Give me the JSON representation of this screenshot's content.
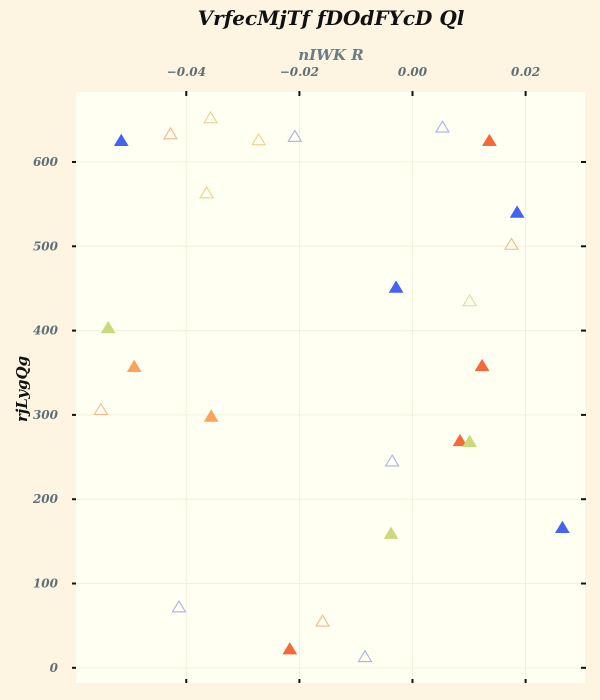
{
  "chart_data": {
    "type": "scatter",
    "title": "VrfecMjTf fDOdFYcD Ql",
    "xlabel": "nIWK  R",
    "ylabel": "rjLygQg",
    "xlim": [
      -0.0595,
      0.0305
    ],
    "ylim": [
      -18,
      683
    ],
    "x_ticks": [
      {
        "value": -0.04,
        "label": "−0.04"
      },
      {
        "value": -0.02,
        "label": "−0.02"
      },
      {
        "value": 0.0,
        "label": "0.00"
      },
      {
        "value": 0.02,
        "label": "0.02"
      }
    ],
    "y_ticks": [
      {
        "value": 0,
        "label": "0"
      },
      {
        "value": 100,
        "label": "100"
      },
      {
        "value": 200,
        "label": "200"
      },
      {
        "value": 300,
        "label": "300"
      },
      {
        "value": 400,
        "label": "400"
      },
      {
        "value": 500,
        "label": "500"
      },
      {
        "value": 600,
        "label": "600"
      }
    ],
    "x_axis_position": "top",
    "grid": true,
    "marker": "triangle",
    "colors": {
      "background": "#fdf5e2",
      "plot_area": "#fffff2",
      "grid": "#f0f0dc",
      "blue": "#4463f0",
      "red_orange": "#f76838",
      "orange": "#fba35c",
      "light_orange_outline": "#f8b48a",
      "yellow_outline": "#f0d08a",
      "light_blue_outline": "#aab0ec",
      "yellow_green": "#c9da7d",
      "pale_green_outline": "#d2e2a6"
    },
    "points": [
      {
        "x": -0.0515,
        "y": 625,
        "color": "#4463f0",
        "filled": true
      },
      {
        "x": 0.0136,
        "y": 625,
        "color": "#f76838",
        "filled": true
      },
      {
        "x": 0.0185,
        "y": 540,
        "color": "#4463f0",
        "filled": true
      },
      {
        "x": -0.0029,
        "y": 451,
        "color": "#4463f0",
        "filled": true
      },
      {
        "x": 0.0265,
        "y": 166,
        "color": "#4463f0",
        "filled": true
      },
      {
        "x": 0.0123,
        "y": 358,
        "color": "#f76838",
        "filled": true
      },
      {
        "x": 0.0084,
        "y": 269,
        "color": "#f76838",
        "filled": true
      },
      {
        "x": -0.0217,
        "y": 22,
        "color": "#f76838",
        "filled": true
      },
      {
        "x": -0.0492,
        "y": 357,
        "color": "#fba35c",
        "filled": true
      },
      {
        "x": -0.0356,
        "y": 298,
        "color": "#fba35c",
        "filled": true
      },
      {
        "x": -0.0538,
        "y": 403,
        "color": "#c9da7d",
        "filled": true
      },
      {
        "x": 0.0101,
        "y": 268,
        "color": "#c9da7d",
        "filled": true
      },
      {
        "x": -0.0038,
        "y": 159,
        "color": "#c9da7d",
        "filled": true
      },
      {
        "x": -0.0428,
        "y": 633,
        "color": "#f8b48a",
        "filled": false
      },
      {
        "x": -0.0551,
        "y": 306,
        "color": "#f8b48a",
        "filled": false
      },
      {
        "x": -0.0159,
        "y": 55,
        "color": "#f8b48a",
        "filled": false
      },
      {
        "x": 0.0175,
        "y": 502,
        "color": "#f8b48a",
        "filled": false
      },
      {
        "x": -0.0357,
        "y": 652,
        "color": "#f0d08a",
        "filled": false
      },
      {
        "x": -0.0364,
        "y": 563,
        "color": "#f0d08a",
        "filled": false
      },
      {
        "x": -0.0272,
        "y": 626,
        "color": "#f0d08a",
        "filled": false
      },
      {
        "x": -0.0208,
        "y": 630,
        "color": "#aab0ec",
        "filled": false
      },
      {
        "x": 0.0053,
        "y": 641,
        "color": "#aab0ec",
        "filled": false
      },
      {
        "x": -0.0036,
        "y": 245,
        "color": "#aab0ec",
        "filled": false
      },
      {
        "x": -0.0413,
        "y": 72,
        "color": "#aab0ec",
        "filled": false
      },
      {
        "x": -0.0084,
        "y": 13,
        "color": "#aab0ec",
        "filled": false
      },
      {
        "x": 0.0101,
        "y": 435,
        "color": "#d2e2a6",
        "filled": false
      }
    ]
  }
}
